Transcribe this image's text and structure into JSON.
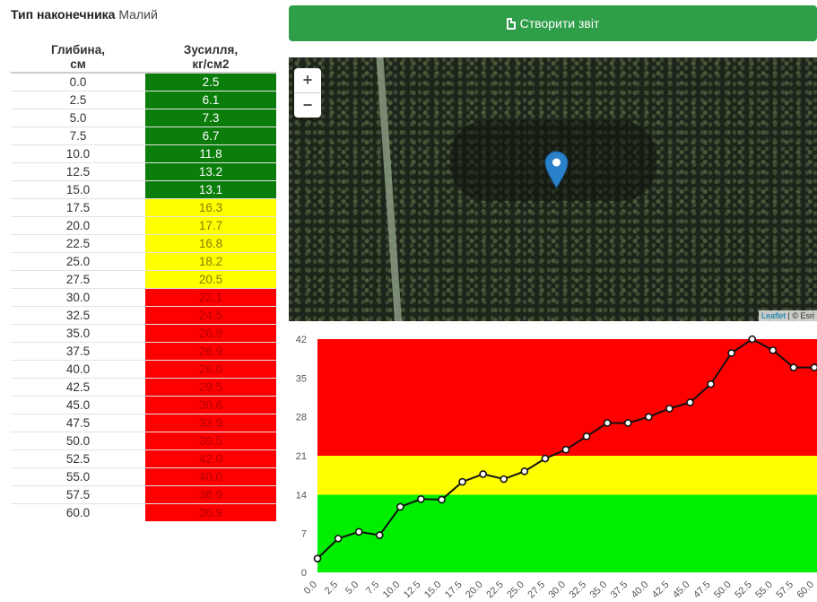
{
  "tip": {
    "label": "Тип наконечника",
    "value": "Малий"
  },
  "table": {
    "col_depth": [
      "Глибина,",
      "см"
    ],
    "col_force": [
      "Зусилля,",
      "кг/см2"
    ]
  },
  "report_button": {
    "label": "Створити звіт",
    "icon": "file-icon"
  },
  "map": {
    "zoom_in": "+",
    "zoom_out": "−",
    "attribution_link": "Leaflet",
    "attribution_text": "| © Esri",
    "marker_icon": "map-marker-icon"
  },
  "colors": {
    "green_cell": "#0b7d0b",
    "yellow_cell": "#ffff00",
    "red_cell": "#ff0000",
    "chart_green": "#00ee00",
    "chart_yellow": "#ffff00",
    "chart_red": "#ff0000",
    "button": "#2e9e49",
    "marker": "#2a81cb"
  },
  "chart_data": {
    "type": "line",
    "x": [
      "0.0",
      "2.5",
      "5.0",
      "7.5",
      "10.0",
      "12.5",
      "15.0",
      "17.5",
      "20.0",
      "22.5",
      "25.0",
      "27.5",
      "30.0",
      "32.5",
      "35.0",
      "37.5",
      "40.0",
      "42.5",
      "45.0",
      "47.5",
      "50.0",
      "52.5",
      "55.0",
      "57.5",
      "60.0"
    ],
    "values": [
      2.5,
      6.1,
      7.3,
      6.7,
      11.8,
      13.2,
      13.1,
      16.3,
      17.7,
      16.8,
      18.2,
      20.5,
      22.1,
      24.5,
      26.9,
      26.9,
      28.0,
      29.5,
      30.6,
      33.9,
      39.5,
      42.0,
      40.0,
      36.9,
      36.9
    ],
    "ylim": [
      0,
      42
    ],
    "yticks": [
      "0",
      "7",
      "14",
      "21",
      "28",
      "35",
      "42"
    ],
    "bands": [
      {
        "from": 0,
        "to": 14,
        "color": "#00ee00"
      },
      {
        "from": 14,
        "to": 21,
        "color": "#ffff00"
      },
      {
        "from": 21,
        "to": 42,
        "color": "#ff0000"
      }
    ],
    "xlabel": "",
    "ylabel": "",
    "grid": false
  }
}
